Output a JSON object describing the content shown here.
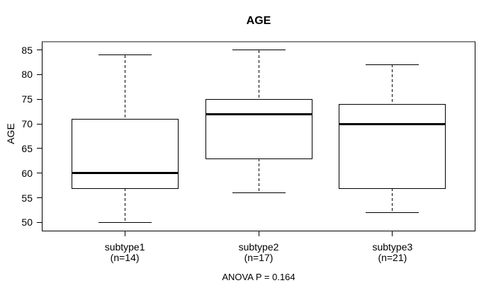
{
  "chart_data": {
    "type": "box",
    "title": "AGE",
    "ylabel": "AGE",
    "xlabel": "",
    "annotation": "ANOVA P = 0.164",
    "ylim": [
      48.2,
      86.8
    ],
    "yticks": [
      50,
      55,
      60,
      65,
      70,
      75,
      80,
      85
    ],
    "grid": false,
    "legend": null,
    "groups": [
      {
        "label": "subtype1",
        "sublabel": "(n=14)",
        "n": 14,
        "whisker_low": 50,
        "q1": 57,
        "median": 60,
        "q3": 71,
        "whisker_high": 84
      },
      {
        "label": "subtype2",
        "sublabel": "(n=17)",
        "n": 17,
        "whisker_low": 56,
        "q1": 63,
        "median": 72,
        "q3": 75,
        "whisker_high": 85
      },
      {
        "label": "subtype3",
        "sublabel": "(n=21)",
        "n": 21,
        "whisker_low": 52,
        "q1": 57,
        "median": 70,
        "q3": 74,
        "whisker_high": 82
      }
    ],
    "colors": {
      "line": "#000000",
      "frame_top": "#8c8c8c",
      "background": "#ffffff",
      "box_fill": "#ffffff"
    }
  }
}
